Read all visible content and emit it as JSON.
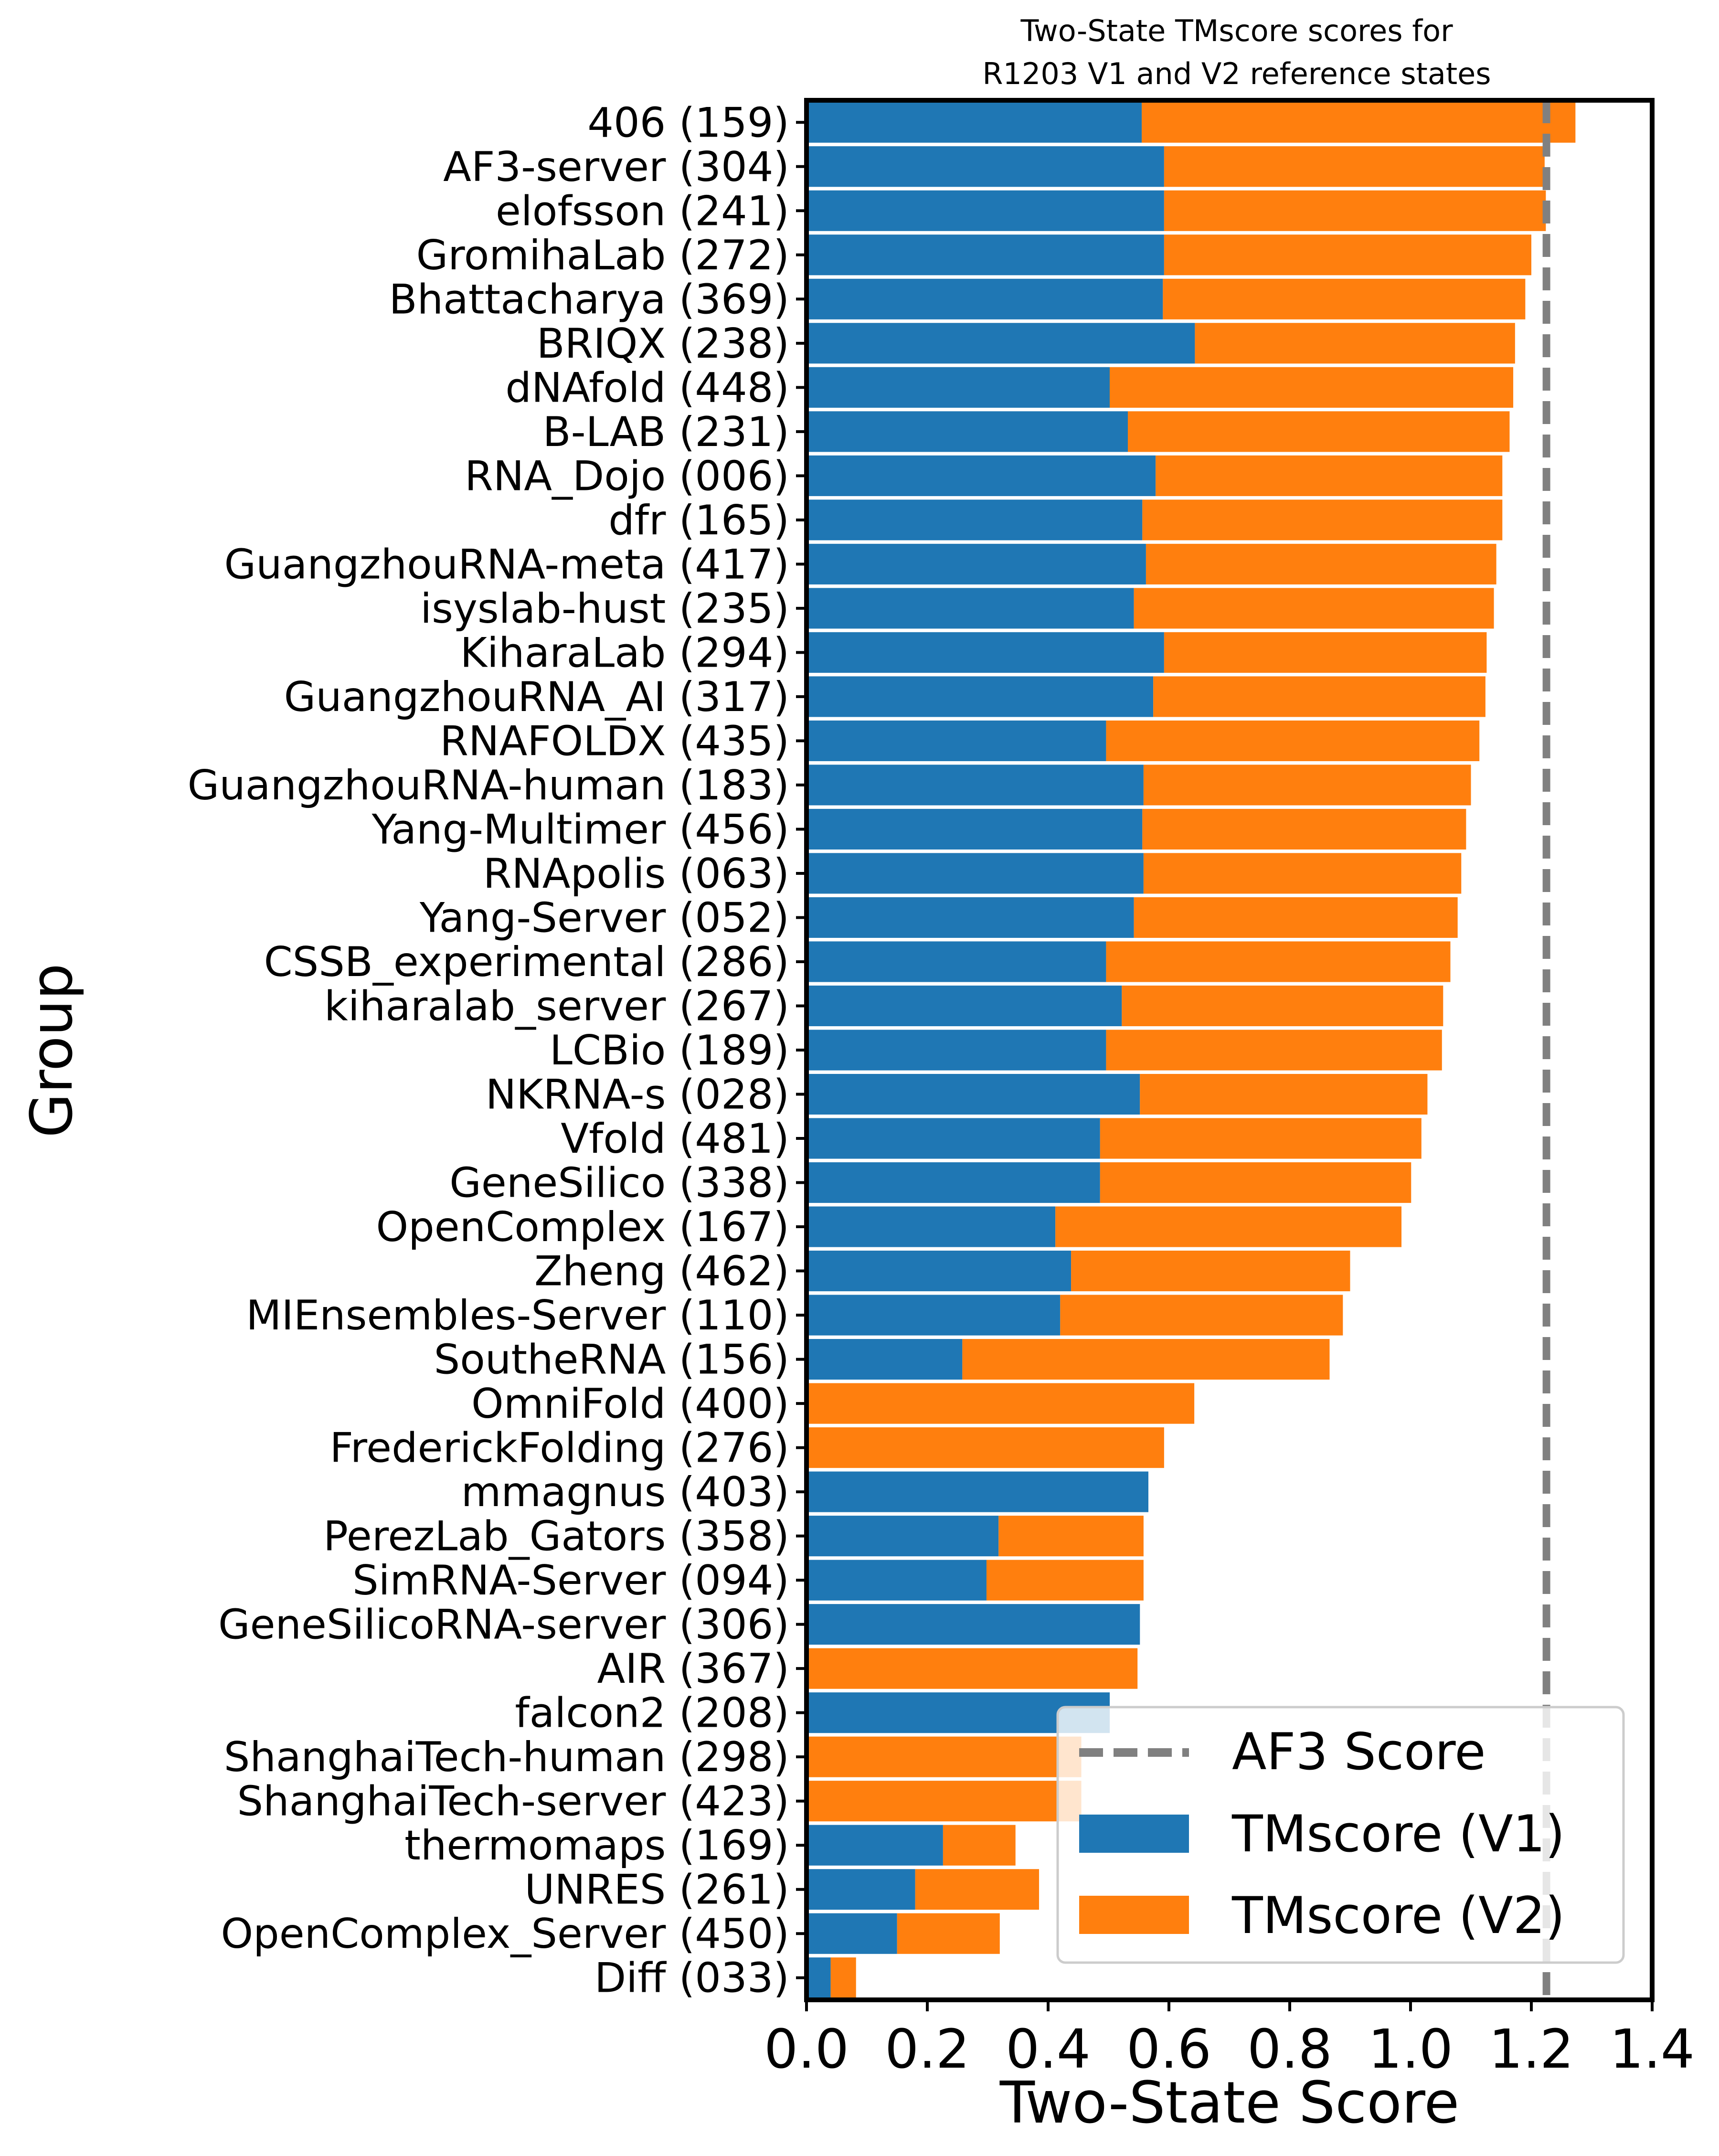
{
  "chart_data": {
    "type": "bar",
    "orientation": "horizontal",
    "stacked": true,
    "title_line1": "Two-State TMscore scores for",
    "title_line2": "R1203 V1 and V2 reference states",
    "xlabel": "Two-State Score",
    "ylabel": "Group",
    "xlim": [
      0.0,
      1.4
    ],
    "xticks": [
      "0.0",
      "0.2",
      "0.4",
      "0.6",
      "0.8",
      "1.0",
      "1.2",
      "1.4"
    ],
    "xtick_values": [
      0.0,
      0.2,
      0.4,
      0.6,
      0.8,
      1.0,
      1.2,
      1.4
    ],
    "grid": false,
    "legend_position": "bottom-right",
    "reference_line": {
      "name": "AF3 Score",
      "value": 1.225,
      "color": "#808080",
      "style": "dashed"
    },
    "categories": [
      "406 (159)",
      "AF3-server (304)",
      "elofsson (241)",
      "GromihaLab (272)",
      "Bhattacharya (369)",
      "BRIQX (238)",
      "dNAfold (448)",
      "B-LAB (231)",
      "RNA_Dojo (006)",
      "dfr (165)",
      "GuangzhouRNA-meta (417)",
      "isyslab-hust (235)",
      "KiharaLab (294)",
      "GuangzhouRNA_AI (317)",
      "RNAFOLDX (435)",
      "GuangzhouRNA-human (183)",
      "Yang-Multimer (456)",
      "RNApolis (063)",
      "Yang-Server (052)",
      "CSSB_experimental (286)",
      "kiharalab_server (267)",
      "LCBio (189)",
      "NKRNA-s (028)",
      "Vfold (481)",
      "GeneSilico (338)",
      "OpenComplex (167)",
      "Zheng (462)",
      "MIEnsembles-Server (110)",
      "SoutheRNA (156)",
      "OmniFold (400)",
      "FrederickFolding (276)",
      "mmagnus (403)",
      "PerezLab_Gators (358)",
      "SimRNA-Server (094)",
      "GeneSilicoRNA-server (306)",
      "AIR (367)",
      "falcon2 (208)",
      "ShanghaiTech-human (298)",
      "ShanghaiTech-server (423)",
      "thermomaps (169)",
      "UNRES (261)",
      "OpenComplex_Server (450)",
      "Diff (033)"
    ],
    "series": [
      {
        "name": "TMscore (V1)",
        "color": "#1f77b4",
        "values": [
          0.555,
          0.592,
          0.592,
          0.592,
          0.59,
          0.643,
          0.502,
          0.532,
          0.578,
          0.556,
          0.562,
          0.542,
          0.592,
          0.574,
          0.496,
          0.558,
          0.556,
          0.558,
          0.542,
          0.496,
          0.522,
          0.496,
          0.552,
          0.486,
          0.486,
          0.412,
          0.438,
          0.42,
          0.258,
          0.0,
          0.0,
          0.566,
          0.318,
          0.298,
          0.552,
          0.0,
          0.502,
          0.0,
          0.0,
          0.226,
          0.18,
          0.15,
          0.04
        ]
      },
      {
        "name": "TMscore (V2)",
        "color": "#ff7f0e",
        "values": [
          0.718,
          0.63,
          0.632,
          0.608,
          0.6,
          0.53,
          0.668,
          0.632,
          0.574,
          0.596,
          0.58,
          0.596,
          0.534,
          0.55,
          0.618,
          0.542,
          0.536,
          0.526,
          0.536,
          0.57,
          0.532,
          0.556,
          0.476,
          0.532,
          0.515,
          0.573,
          0.462,
          0.468,
          0.608,
          0.642,
          0.592,
          0.0,
          0.24,
          0.26,
          0.0,
          0.548,
          0.0,
          0.455,
          0.455,
          0.12,
          0.205,
          0.17,
          0.042
        ]
      }
    ]
  }
}
